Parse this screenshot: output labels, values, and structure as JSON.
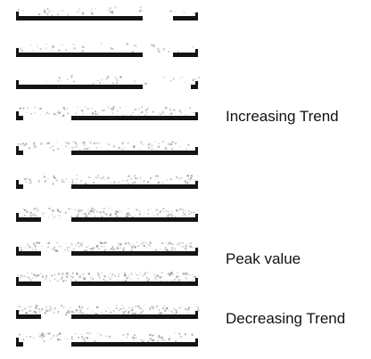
{
  "annotations": {
    "increasing": "Increasing Trend",
    "peak": "Peak value",
    "decreasing": "Decreasing Trend"
  },
  "colors": {
    "bar": "#141414",
    "noise": "#8a8a8a",
    "background": "#ffffff"
  },
  "rows": [
    {
      "segments": [
        "long",
        "short"
      ],
      "noise": "low"
    },
    {
      "segments": [
        "long",
        "short"
      ],
      "noise": "low"
    },
    {
      "segments": [
        "long",
        "tick"
      ],
      "noise": "low"
    },
    {
      "segments": [
        "tick",
        "long"
      ],
      "noise": "medium"
    },
    {
      "segments": [
        "tick",
        "long"
      ],
      "noise": "medium"
    },
    {
      "segments": [
        "tick",
        "long"
      ],
      "noise": "medium"
    },
    {
      "segments": [
        "short",
        "long"
      ],
      "noise": "high"
    },
    {
      "segments": [
        "short",
        "long"
      ],
      "noise": "high"
    },
    {
      "segments": [
        "short",
        "long"
      ],
      "noise": "high"
    },
    {
      "segments": [
        "short",
        "long"
      ],
      "noise": "high"
    },
    {
      "segments": [
        "tick",
        "long"
      ],
      "noise": "medium"
    }
  ]
}
